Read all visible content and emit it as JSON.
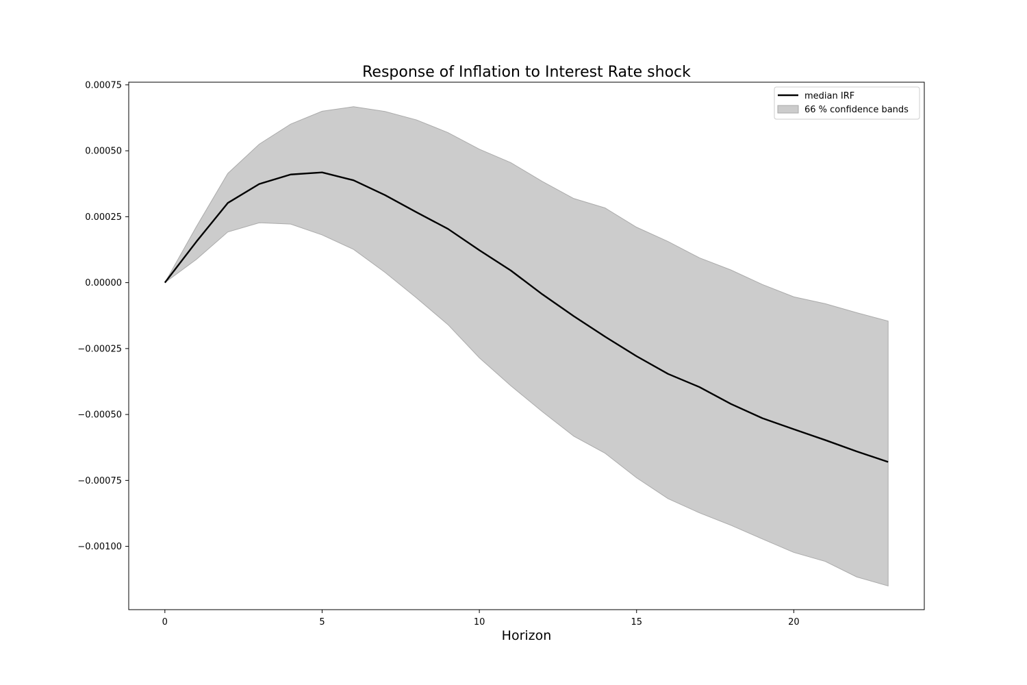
{
  "chart_data": {
    "type": "line",
    "title": "Response of Inflation to Interest Rate shock",
    "xlabel": "Horizon",
    "ylabel": "",
    "xlim": [
      -1.15,
      24.15
    ],
    "ylim": [
      -0.00124,
      0.00076
    ],
    "x_ticks": [
      0,
      5,
      10,
      15,
      20
    ],
    "x_tick_labels": [
      "0",
      "5",
      "10",
      "15",
      "20"
    ],
    "y_ticks": [
      0.00075,
      0.0005,
      0.00025,
      0.0,
      -0.00025,
      -0.0005,
      -0.00075,
      -0.001
    ],
    "y_tick_labels": [
      "0.00075",
      "0.00050",
      "0.00025",
      "0.00000",
      "−0.00025",
      "−0.00050",
      "−0.00075",
      "−0.00100"
    ],
    "grid": false,
    "legend_position": "top-right",
    "x": [
      0,
      1,
      2,
      3,
      4,
      5,
      6,
      7,
      8,
      9,
      10,
      11,
      12,
      13,
      14,
      15,
      16,
      17,
      18,
      19,
      20,
      21,
      22,
      23
    ],
    "series": [
      {
        "name": "median IRF",
        "color": "#000000",
        "values": [
          0.0,
          0.000155,
          0.000302,
          0.000374,
          0.00041,
          0.000418,
          0.000388,
          0.000332,
          0.000267,
          0.000204,
          0.000123,
          4.6e-05,
          -4.4e-05,
          -0.000127,
          -0.000205,
          -0.000279,
          -0.000346,
          -0.000396,
          -0.00046,
          -0.000514,
          -0.000556,
          -0.000597,
          -0.00064,
          -0.00068
        ]
      }
    ],
    "band": {
      "name": "66 % confidence bands",
      "color": "#cccccc",
      "edge_color": "#aaaaaa",
      "lower": [
        0.0,
        8.8e-05,
        0.000192,
        0.000227,
        0.000222,
        0.000181,
        0.000126,
        3.9e-05,
        -5.8e-05,
        -0.000159,
        -0.000285,
        -0.000391,
        -0.000489,
        -0.000582,
        -0.000647,
        -0.00074,
        -0.000819,
        -0.000873,
        -0.00092,
        -0.000972,
        -0.001023,
        -0.001057,
        -0.001116,
        -0.00115
      ],
      "upper": [
        0.0,
        0.000212,
        0.000414,
        0.000525,
        0.000601,
        0.00065,
        0.000667,
        0.000649,
        0.000617,
        0.000569,
        0.000506,
        0.000455,
        0.000384,
        0.000319,
        0.000283,
        0.00021,
        0.000156,
        9.4e-05,
        4.8e-05,
        -7e-06,
        -5.4e-05,
        -8e-05,
        -0.000114,
        -0.000146
      ]
    }
  }
}
